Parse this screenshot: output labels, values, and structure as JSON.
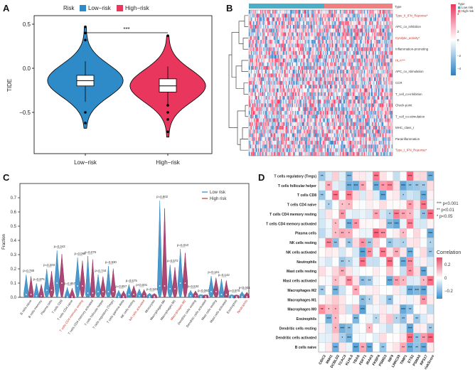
{
  "panels": [
    "A",
    "B",
    "C",
    "D"
  ],
  "chart_data": [
    {
      "id": "A",
      "type": "violin",
      "legend": {
        "title": "Risk",
        "entries": [
          "Low−risk",
          "High−risk"
        ],
        "colors": [
          "#2e8bc8",
          "#e8365d"
        ]
      },
      "categories": [
        "Low−risk",
        "High−risk"
      ],
      "ylabel": "TIDE",
      "yticks": [
        0.5,
        0.0,
        -0.5
      ],
      "ytick_labels": [
        "0.5",
        "0.0",
        "−0.5"
      ],
      "ylim": [
        -0.8,
        0.55
      ],
      "significance": "***",
      "series": [
        {
          "name": "Low−risk",
          "median": -0.14,
          "q1": -0.2,
          "q3": -0.08,
          "whisker_low": -0.38,
          "whisker_high": 0.08,
          "min": -0.68,
          "max": 0.47,
          "outliers": [
            0.32,
            0.4,
            0.47,
            -0.5,
            -0.62
          ]
        },
        {
          "name": "High−risk",
          "median": -0.2,
          "q1": -0.27,
          "q3": -0.12,
          "whisker_low": -0.42,
          "whisker_high": 0.02,
          "min": -0.78,
          "max": 0.37,
          "outliers": [
            0.37,
            -0.42,
            -0.5,
            -0.58,
            -0.72
          ]
        }
      ]
    },
    {
      "id": "B",
      "type": "heatmap",
      "rows": [
        "Type_II_IFN_Reponse*",
        "APC_co_inhibition",
        "Cytolytic_activity*",
        "Inflammation-promoting",
        "HLA***",
        "APC_co_stimulation",
        "CCR",
        "T_cell_co-inhibition",
        "Check-point",
        "T_cell_co-stimulation",
        "MHC_class_I",
        "Parainflammation",
        "Type_I_IFN_Reponse*"
      ],
      "highlighted_rows": [
        "Type_II_IFN_Reponse*",
        "Cytolytic_activity*",
        "HLA***",
        "Type_I_IFN_Reponse*"
      ],
      "annotation": {
        "label": "Type",
        "title": "Type",
        "entries": [
          "Low risk",
          "High risk"
        ],
        "colors": [
          "#4aaec9",
          "#f08080"
        ]
      },
      "colorbar": {
        "ticks": [
          "4",
          "2",
          "0",
          "−2",
          "−4"
        ],
        "range": [
          -4,
          4
        ]
      }
    },
    {
      "id": "C",
      "type": "violin",
      "ylabel": "Fraction",
      "ylim": [
        0,
        0.75
      ],
      "yticks": [
        "0.0",
        "0.1",
        "0.2",
        "0.3",
        "0.4",
        "0.5",
        "0.6",
        "0.7"
      ],
      "legend": {
        "entries": [
          "Low risk",
          "High risk"
        ],
        "colors": [
          "#2e86c1",
          "#c0392b"
        ]
      },
      "categories": [
        "B cells naive",
        "B cells memory",
        "Plasma cells",
        "T cells CD8",
        "T cells CD4 naive",
        "T cells CD4 memory resting",
        "T cells CD4 memory activated",
        "T cells follicular helper",
        "T cells regulatory (Tregs)",
        "T cells gamma delta",
        "NK cells resting",
        "NK cells activated",
        "Monocytes",
        "Macrophages M0",
        "Macrophages M1",
        "Macrophages M2",
        "Dendritic cells resting",
        "Dendritic cells activated",
        "Mast cells resting",
        "Mast cells activated",
        "Eosinophils",
        "Neutrophils"
      ],
      "highlighted": [
        "T cells CD4 memory resting",
        "NK cells activated",
        "Macrophages M2",
        "Neutrophils"
      ],
      "pvalue_labels": [
        "p=0.780",
        "p=0.876",
        "p=0.203",
        "p=0.343",
        "p=0.857",
        "p=0.095",
        "p=0.079",
        "p=0.744",
        "p=0.930",
        "p=0.857",
        "p=0.675",
        "p<0.001",
        "p=0.523",
        "p=0.902",
        "p=0.572",
        "p=0.010",
        "p=0.534",
        "p=0.060",
        "p=0.161",
        "p=0.142",
        "p=0.975",
        "p<0.001"
      ],
      "max_values": [
        0.16,
        0.1,
        0.2,
        0.33,
        0.07,
        0.28,
        0.29,
        0.16,
        0.22,
        0.05,
        0.09,
        0.06,
        0.03,
        0.68,
        0.23,
        0.34,
        0.05,
        0.02,
        0.15,
        0.13,
        0.02,
        0.04
      ],
      "medians": [
        0.02,
        0.01,
        0.05,
        0.1,
        0.005,
        0.08,
        0.03,
        0.04,
        0.04,
        0.005,
        0.02,
        0.01,
        0.005,
        0.08,
        0.06,
        0.1,
        0.01,
        0.005,
        0.04,
        0.02,
        0.003,
        0.005
      ]
    },
    {
      "id": "D",
      "type": "heatmap",
      "rows": [
        "T cells regulatory (Tregs)",
        "T cells follicular helper",
        "T cells CD8",
        "T cells CD4 naive",
        "T cells CD4 memory resting",
        "T cells CD4 memory activated",
        "Plasma cells",
        "NK cells resting",
        "NK cells activated",
        "Neutrophils",
        "Mast cells resting",
        "Mast cells activated",
        "Macrophages M2",
        "Macrophages M1",
        "Macrophages M0",
        "Eosinophils",
        "Dendritic cells resting",
        "Dendritic cells activated",
        "B cells naive"
      ],
      "columns": [
        "CIDC2",
        "RNH1",
        "DCBLD2",
        "TCAC3",
        "KLHL6",
        "YBAS",
        "FDFT1",
        "IRAK3",
        "FKBP4",
        "PSMG3",
        "NIF9",
        "LRRC59",
        "TIMP1",
        "ETS2",
        "PSMA5",
        "RPS17",
        "riskScore"
      ],
      "legend": {
        "entries": [
          "*** p<0.001",
          "** p<0.01",
          "* p<0.05"
        ]
      },
      "colorbar": {
        "title": "Correlation",
        "ticks": [
          "0.2",
          "0",
          "−0.2"
        ],
        "range": [
          -0.3,
          0.3
        ]
      }
    }
  ]
}
